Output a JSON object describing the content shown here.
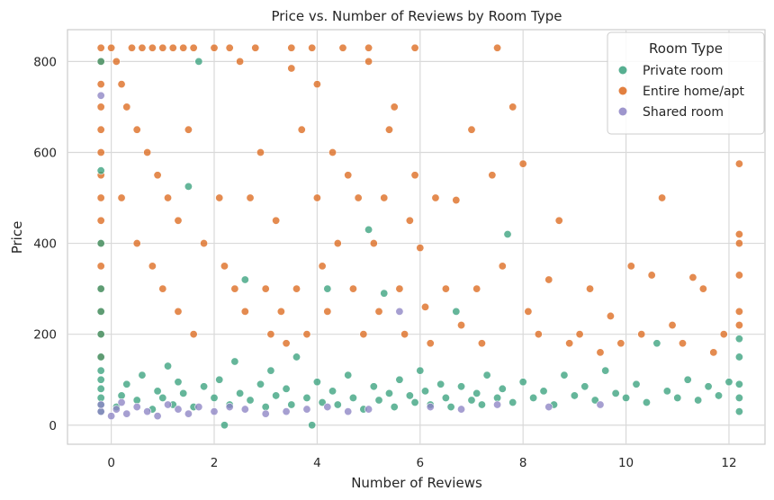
{
  "chart_data": {
    "type": "scatter",
    "title": "Price vs. Number of Reviews by Room Type",
    "xlabel": "Number of Reviews",
    "ylabel": "Price",
    "xlim": [
      -0.85,
      12.7
    ],
    "ylim": [
      -42,
      870
    ],
    "xticks": [
      0,
      2,
      4,
      6,
      8,
      10,
      12
    ],
    "yticks": [
      0,
      200,
      400,
      600,
      800
    ],
    "grid": true,
    "legend": {
      "title": "Room Type",
      "position": "top-right"
    },
    "series": [
      {
        "name": "Private room",
        "color": "#3aa17e",
        "points": [
          [
            -0.2,
            30
          ],
          [
            -0.2,
            45
          ],
          [
            -0.2,
            60
          ],
          [
            -0.2,
            80
          ],
          [
            -0.2,
            100
          ],
          [
            -0.2,
            120
          ],
          [
            -0.2,
            150
          ],
          [
            -0.2,
            200
          ],
          [
            -0.2,
            250
          ],
          [
            -0.2,
            300
          ],
          [
            -0.2,
            400
          ],
          [
            -0.2,
            560
          ],
          [
            -0.2,
            800
          ],
          [
            0.1,
            40
          ],
          [
            0.2,
            65
          ],
          [
            0.3,
            90
          ],
          [
            0.5,
            55
          ],
          [
            0.6,
            110
          ],
          [
            0.8,
            35
          ],
          [
            0.9,
            75
          ],
          [
            1.0,
            60
          ],
          [
            1.1,
            130
          ],
          [
            1.2,
            45
          ],
          [
            1.3,
            95
          ],
          [
            1.4,
            70
          ],
          [
            1.5,
            525
          ],
          [
            1.6,
            40
          ],
          [
            1.7,
            800
          ],
          [
            1.8,
            85
          ],
          [
            2.0,
            60
          ],
          [
            2.1,
            100
          ],
          [
            2.2,
            0
          ],
          [
            2.3,
            45
          ],
          [
            2.4,
            140
          ],
          [
            2.5,
            70
          ],
          [
            2.6,
            320
          ],
          [
            2.7,
            55
          ],
          [
            2.9,
            90
          ],
          [
            3.0,
            40
          ],
          [
            3.1,
            120
          ],
          [
            3.2,
            65
          ],
          [
            3.4,
            80
          ],
          [
            3.5,
            45
          ],
          [
            3.6,
            150
          ],
          [
            3.8,
            60
          ],
          [
            3.9,
            0
          ],
          [
            4.0,
            95
          ],
          [
            4.1,
            50
          ],
          [
            4.2,
            300
          ],
          [
            4.3,
            75
          ],
          [
            4.4,
            45
          ],
          [
            4.6,
            110
          ],
          [
            4.7,
            60
          ],
          [
            4.9,
            35
          ],
          [
            5.0,
            430
          ],
          [
            5.1,
            85
          ],
          [
            5.2,
            55
          ],
          [
            5.3,
            290
          ],
          [
            5.4,
            70
          ],
          [
            5.5,
            40
          ],
          [
            5.6,
            100
          ],
          [
            5.8,
            65
          ],
          [
            5.9,
            50
          ],
          [
            6.0,
            120
          ],
          [
            6.1,
            75
          ],
          [
            6.2,
            45
          ],
          [
            6.4,
            90
          ],
          [
            6.5,
            60
          ],
          [
            6.6,
            40
          ],
          [
            6.7,
            250
          ],
          [
            6.8,
            85
          ],
          [
            7.0,
            55
          ],
          [
            7.1,
            70
          ],
          [
            7.2,
            45
          ],
          [
            7.3,
            110
          ],
          [
            7.5,
            60
          ],
          [
            7.6,
            80
          ],
          [
            7.7,
            420
          ],
          [
            7.8,
            50
          ],
          [
            8.0,
            95
          ],
          [
            8.2,
            60
          ],
          [
            8.4,
            75
          ],
          [
            8.6,
            45
          ],
          [
            8.8,
            110
          ],
          [
            9.0,
            65
          ],
          [
            9.2,
            85
          ],
          [
            9.4,
            55
          ],
          [
            9.6,
            120
          ],
          [
            9.8,
            70
          ],
          [
            10.0,
            60
          ],
          [
            10.2,
            90
          ],
          [
            10.4,
            50
          ],
          [
            10.6,
            180
          ],
          [
            10.8,
            75
          ],
          [
            11.0,
            60
          ],
          [
            11.2,
            100
          ],
          [
            11.4,
            55
          ],
          [
            11.6,
            85
          ],
          [
            11.8,
            65
          ],
          [
            12.0,
            95
          ],
          [
            12.2,
            30
          ],
          [
            12.2,
            60
          ],
          [
            12.2,
            90
          ],
          [
            12.2,
            150
          ],
          [
            12.2,
            190
          ]
        ]
      },
      {
        "name": "Entire home/apt",
        "color": "#dd6a1f",
        "points": [
          [
            -0.2,
            830
          ],
          [
            -0.2,
            800
          ],
          [
            -0.2,
            750
          ],
          [
            -0.2,
            700
          ],
          [
            -0.2,
            650
          ],
          [
            -0.2,
            600
          ],
          [
            -0.2,
            550
          ],
          [
            -0.2,
            500
          ],
          [
            -0.2,
            450
          ],
          [
            -0.2,
            400
          ],
          [
            -0.2,
            350
          ],
          [
            -0.2,
            300
          ],
          [
            -0.2,
            250
          ],
          [
            -0.2,
            200
          ],
          [
            -0.2,
            150
          ],
          [
            0.0,
            830
          ],
          [
            0.1,
            800
          ],
          [
            0.2,
            750
          ],
          [
            0.3,
            700
          ],
          [
            0.4,
            830
          ],
          [
            0.5,
            650
          ],
          [
            0.6,
            830
          ],
          [
            0.7,
            600
          ],
          [
            0.8,
            830
          ],
          [
            0.9,
            550
          ],
          [
            1.0,
            830
          ],
          [
            1.1,
            500
          ],
          [
            1.2,
            830
          ],
          [
            1.3,
            450
          ],
          [
            1.4,
            830
          ],
          [
            1.5,
            650
          ],
          [
            1.6,
            830
          ],
          [
            0.2,
            500
          ],
          [
            0.5,
            400
          ],
          [
            0.8,
            350
          ],
          [
            1.0,
            300
          ],
          [
            1.3,
            250
          ],
          [
            1.6,
            200
          ],
          [
            1.8,
            400
          ],
          [
            2.0,
            830
          ],
          [
            2.1,
            500
          ],
          [
            2.2,
            350
          ],
          [
            2.3,
            830
          ],
          [
            2.4,
            300
          ],
          [
            2.5,
            800
          ],
          [
            2.6,
            250
          ],
          [
            2.7,
            500
          ],
          [
            2.8,
            830
          ],
          [
            2.9,
            600
          ],
          [
            3.0,
            300
          ],
          [
            3.1,
            200
          ],
          [
            3.2,
            450
          ],
          [
            3.3,
            250
          ],
          [
            3.4,
            180
          ],
          [
            3.5,
            830
          ],
          [
            3.5,
            785
          ],
          [
            3.6,
            300
          ],
          [
            3.7,
            650
          ],
          [
            3.8,
            200
          ],
          [
            3.9,
            830
          ],
          [
            4.0,
            750
          ],
          [
            4.0,
            500
          ],
          [
            4.1,
            350
          ],
          [
            4.2,
            250
          ],
          [
            4.3,
            600
          ],
          [
            4.4,
            400
          ],
          [
            4.5,
            830
          ],
          [
            4.6,
            550
          ],
          [
            4.7,
            300
          ],
          [
            4.8,
            500
          ],
          [
            4.9,
            200
          ],
          [
            5.0,
            830
          ],
          [
            5.0,
            800
          ],
          [
            5.1,
            400
          ],
          [
            5.2,
            250
          ],
          [
            5.3,
            500
          ],
          [
            5.4,
            650
          ],
          [
            5.5,
            700
          ],
          [
            5.6,
            300
          ],
          [
            5.7,
            200
          ],
          [
            5.8,
            450
          ],
          [
            5.9,
            830
          ],
          [
            5.9,
            550
          ],
          [
            6.0,
            390
          ],
          [
            6.1,
            260
          ],
          [
            6.2,
            180
          ],
          [
            6.3,
            500
          ],
          [
            6.5,
            300
          ],
          [
            6.7,
            495
          ],
          [
            6.8,
            220
          ],
          [
            7.0,
            650
          ],
          [
            7.1,
            300
          ],
          [
            7.2,
            180
          ],
          [
            7.4,
            550
          ],
          [
            7.5,
            830
          ],
          [
            7.6,
            350
          ],
          [
            7.8,
            700
          ],
          [
            8.0,
            575
          ],
          [
            8.1,
            250
          ],
          [
            8.3,
            200
          ],
          [
            8.5,
            320
          ],
          [
            8.7,
            450
          ],
          [
            8.9,
            180
          ],
          [
            9.1,
            200
          ],
          [
            9.3,
            300
          ],
          [
            9.5,
            160
          ],
          [
            9.7,
            240
          ],
          [
            9.9,
            180
          ],
          [
            10.1,
            350
          ],
          [
            10.3,
            200
          ],
          [
            10.5,
            330
          ],
          [
            10.7,
            500
          ],
          [
            10.9,
            220
          ],
          [
            11.1,
            180
          ],
          [
            11.3,
            325
          ],
          [
            11.5,
            300
          ],
          [
            11.7,
            160
          ],
          [
            11.9,
            200
          ],
          [
            12.2,
            575
          ],
          [
            12.2,
            420
          ],
          [
            12.2,
            400
          ],
          [
            12.2,
            330
          ],
          [
            12.2,
            250
          ],
          [
            12.2,
            220
          ]
        ]
      },
      {
        "name": "Shared room",
        "color": "#8d84c4",
        "points": [
          [
            -0.2,
            725
          ],
          [
            -0.2,
            30
          ],
          [
            -0.2,
            45
          ],
          [
            0.0,
            20
          ],
          [
            0.1,
            35
          ],
          [
            0.2,
            50
          ],
          [
            0.3,
            25
          ],
          [
            0.5,
            40
          ],
          [
            0.7,
            30
          ],
          [
            0.9,
            20
          ],
          [
            1.1,
            45
          ],
          [
            1.3,
            35
          ],
          [
            1.5,
            25
          ],
          [
            1.7,
            40
          ],
          [
            2.0,
            30
          ],
          [
            2.3,
            40
          ],
          [
            2.6,
            35
          ],
          [
            3.0,
            25
          ],
          [
            3.4,
            30
          ],
          [
            3.8,
            35
          ],
          [
            4.2,
            40
          ],
          [
            4.6,
            30
          ],
          [
            5.0,
            35
          ],
          [
            5.6,
            250
          ],
          [
            6.2,
            40
          ],
          [
            6.8,
            35
          ],
          [
            7.5,
            45
          ],
          [
            8.5,
            40
          ],
          [
            9.5,
            45
          ]
        ]
      }
    ]
  }
}
